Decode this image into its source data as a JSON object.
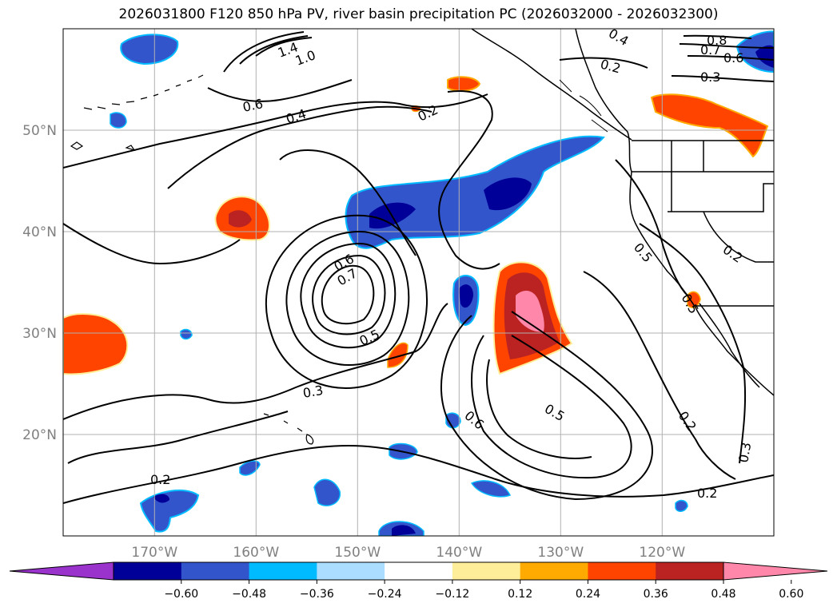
{
  "title": "2026031800 F120 850 hPa PV, river basin precipitation PC (2026032000 - 2026032300)",
  "map": {
    "lon_range": [
      -179,
      -109
    ],
    "lat_range": [
      10,
      60
    ],
    "lat_ticks": [
      {
        "value": 50,
        "label": "50°N"
      },
      {
        "value": 40,
        "label": "40°N"
      },
      {
        "value": 30,
        "label": "30°N"
      },
      {
        "value": 20,
        "label": "20°N"
      }
    ],
    "lon_ticks": [
      {
        "value": -170,
        "label": "170°W"
      },
      {
        "value": -160,
        "label": "160°W"
      },
      {
        "value": -150,
        "label": "150°W"
      },
      {
        "value": -140,
        "label": "140°W"
      },
      {
        "value": -130,
        "label": "130°W"
      },
      {
        "value": -120,
        "label": "120°W"
      }
    ],
    "contour_labels": [
      "0.2",
      "0.2",
      "0.2",
      "0.2",
      "0.2",
      "0.2",
      "0.3",
      "0.3",
      "0.3",
      "0.4",
      "0.4",
      "0.5",
      "0.5",
      "0.5",
      "0.6",
      "0.6",
      "0.6",
      "0.6",
      "0.7",
      "0.7",
      "0.8",
      "0.5",
      "1.4",
      "1.0"
    ]
  },
  "colorbar": {
    "colors": [
      "#9933cc",
      "#000099",
      "#3355cc",
      "#00bbff",
      "#aaddff",
      "#ffffff",
      "#ffee99",
      "#ffaa00",
      "#ff4400",
      "#bb2222",
      "#ff88aa"
    ],
    "ticks": [
      "−0.60",
      "−0.48",
      "−0.36",
      "−0.24",
      "−0.12",
      "0.12",
      "0.24",
      "0.36",
      "0.48",
      "0.60"
    ]
  },
  "legend_colors": {
    "neg_dark": "#000099",
    "neg_mid": "#3355cc",
    "neg_light": "#00bbff",
    "pos_yellow": "#ffee99",
    "pos_orange": "#ffaa00",
    "pos_red": "#ff4400",
    "pos_darkred": "#bb2222",
    "pos_pink": "#ff88aa"
  }
}
